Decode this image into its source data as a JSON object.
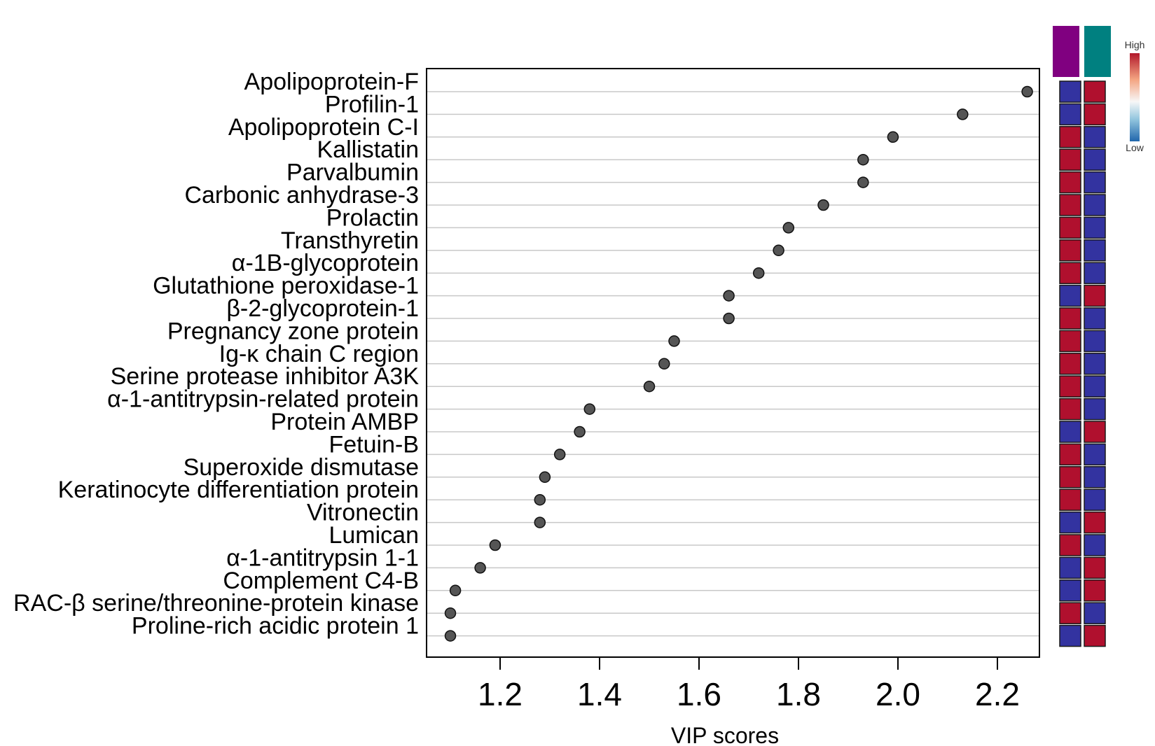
{
  "chart_data": {
    "type": "scatter",
    "title": "",
    "xlabel": "VIP scores",
    "xlim": [
      1.05,
      2.3
    ],
    "xticks": [
      "1.2",
      "1.4",
      "1.6",
      "1.8",
      "2.0",
      "2.2"
    ],
    "grid": true,
    "categories": [
      "Apolipoprotein-F",
      "Profilin-1",
      "Apolipoprotein C-I",
      "Kallistatin",
      "Parvalbumin",
      "Carbonic anhydrase-3",
      "Prolactin",
      "Transthyretin",
      "α-1B-glycoprotein",
      "Glutathione peroxidase-1",
      "β-2-glycoprotein-1",
      "Pregnancy zone protein",
      "Ig-κ chain C region",
      "Serine protease inhibitor A3K",
      "α-1-antitrypsin-related protein",
      "Protein AMBP",
      "Fetuin-B",
      "Superoxide dismutase",
      "Keratinocyte differentiation protein",
      "Vitronectin",
      "Lumican",
      "α-1-antitrypsin 1-1",
      "Complement C4-B",
      "RAC-β serine/threonine-protein kinase",
      "Proline-rich acidic protein 1"
    ],
    "values": [
      2.26,
      2.13,
      1.99,
      1.93,
      1.93,
      1.85,
      1.78,
      1.76,
      1.72,
      1.66,
      1.66,
      1.55,
      1.53,
      1.5,
      1.38,
      1.36,
      1.32,
      1.29,
      1.28,
      1.28,
      1.19,
      1.16,
      1.11,
      1.1,
      1.1
    ],
    "heatmap": {
      "group_colors": [
        "#800080",
        "#008080"
      ],
      "cells": [
        [
          "low",
          "high"
        ],
        [
          "low",
          "high"
        ],
        [
          "high",
          "low"
        ],
        [
          "high",
          "low"
        ],
        [
          "high",
          "low"
        ],
        [
          "high",
          "low"
        ],
        [
          "high",
          "low"
        ],
        [
          "high",
          "low"
        ],
        [
          "high",
          "low"
        ],
        [
          "low",
          "high"
        ],
        [
          "high",
          "low"
        ],
        [
          "high",
          "low"
        ],
        [
          "high",
          "low"
        ],
        [
          "high",
          "low"
        ],
        [
          "high",
          "low"
        ],
        [
          "low",
          "high"
        ],
        [
          "high",
          "low"
        ],
        [
          "high",
          "low"
        ],
        [
          "high",
          "low"
        ],
        [
          "low",
          "high"
        ],
        [
          "high",
          "low"
        ],
        [
          "low",
          "high"
        ],
        [
          "low",
          "high"
        ],
        [
          "high",
          "low"
        ],
        [
          "low",
          "high"
        ]
      ],
      "high_color": "#B0102E",
      "low_color": "#3333A0"
    },
    "legend": {
      "high_label": "High",
      "low_label": "Low"
    },
    "colors": {
      "point_fill": "#555555",
      "point_stroke": "#111111",
      "gridline": "#C8C8C8",
      "frame": "#000000",
      "gradient": [
        "#B2182B",
        "#F4A582",
        "#F7F7F7",
        "#92C5DE",
        "#2166AC"
      ]
    }
  }
}
